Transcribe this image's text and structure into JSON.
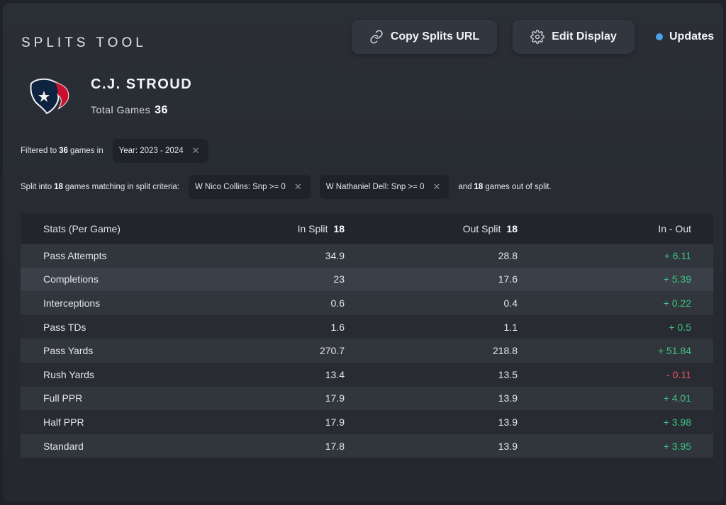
{
  "header": {
    "app_title": "SPLITS TOOL",
    "copy_button": "Copy Splits URL",
    "edit_button": "Edit Display",
    "updates_label": "Updates"
  },
  "player": {
    "name": "C.J. STROUD",
    "total_games_label": "Total Games",
    "total_games": "36",
    "team_logo": "houston-texans-logo"
  },
  "filters": {
    "row1_prefix": "Filtered to",
    "row1_count": "36",
    "row1_suffix": "games in",
    "year_chip": "Year: 2023 - 2024",
    "row2_prefix": "Split into",
    "row2_count": "18",
    "row2_suffix": "games matching in split criteria:",
    "split_chip_1": "W Nico Collins: Snp >= 0",
    "split_chip_2": "W Nathaniel Dell: Snp >= 0",
    "tail_prefix": "and",
    "tail_count": "18",
    "tail_suffix": "games out of split."
  },
  "table": {
    "headers": {
      "stat": "Stats (Per Game)",
      "in_split": "In Split",
      "in_split_count": "18",
      "out_split": "Out Split",
      "out_split_count": "18",
      "diff": "In - Out"
    },
    "rows": [
      {
        "stat": "Pass Attempts",
        "in": "34.9",
        "out": "28.8",
        "diff": "+ 6.11",
        "sign": "pos"
      },
      {
        "stat": "Completions",
        "in": "23",
        "out": "17.6",
        "diff": "+ 5.39",
        "sign": "pos"
      },
      {
        "stat": "Interceptions",
        "in": "0.6",
        "out": "0.4",
        "diff": "+ 0.22",
        "sign": "pos"
      },
      {
        "stat": "Pass TDs",
        "in": "1.6",
        "out": "1.1",
        "diff": "+ 0.5",
        "sign": "pos"
      },
      {
        "stat": "Pass Yards",
        "in": "270.7",
        "out": "218.8",
        "diff": "+ 51.84",
        "sign": "pos"
      },
      {
        "stat": "Rush Yards",
        "in": "13.4",
        "out": "13.5",
        "diff": "- 0.11",
        "sign": "neg"
      },
      {
        "stat": "Full PPR",
        "in": "17.9",
        "out": "13.9",
        "diff": "+ 4.01",
        "sign": "pos"
      },
      {
        "stat": "Half PPR",
        "in": "17.9",
        "out": "13.9",
        "diff": "+ 3.98",
        "sign": "pos"
      },
      {
        "stat": "Standard",
        "in": "17.8",
        "out": "13.9",
        "diff": "+ 3.95",
        "sign": "pos"
      }
    ]
  },
  "colors": {
    "positive": "#3ec283",
    "negative": "#e8555a",
    "updates_dot": "#4aa3e8"
  }
}
